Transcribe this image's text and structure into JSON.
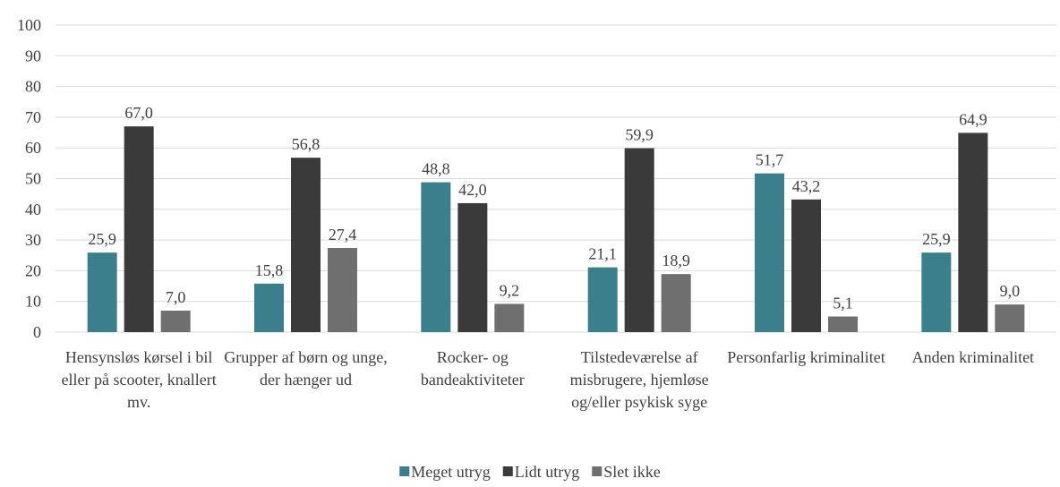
{
  "chart_data": {
    "type": "bar",
    "categories": [
      "Hensynsløs kørsel i bil eller på scooter, knallert mv.",
      "Grupper af børn og unge, der hænger ud",
      "Rocker- og bandeaktiviteter",
      "Tilstedeværelse af misbrugere, hjemløse og/eller psykisk syge",
      "Personfarlig kriminalitet",
      "Anden kriminalitet"
    ],
    "series": [
      {
        "name": "Meget utryg",
        "color": "#3b7f8c",
        "values": [
          25.9,
          15.8,
          48.8,
          21.1,
          51.7,
          25.9
        ],
        "value_labels": [
          "25,9",
          "15,8",
          "48,8",
          "21,1",
          "51,7",
          "25,9"
        ]
      },
      {
        "name": "Lidt utryg",
        "color": "#3a3a3a",
        "values": [
          67.0,
          56.8,
          42.0,
          59.9,
          43.2,
          64.9
        ],
        "value_labels": [
          "67,0",
          "56,8",
          "42,0",
          "59,9",
          "43,2",
          "64,9"
        ]
      },
      {
        "name": "Slet ikke",
        "color": "#6f6f6f",
        "values": [
          7.0,
          27.4,
          9.2,
          18.9,
          5.1,
          9.0
        ],
        "value_labels": [
          "7,0",
          "27,4",
          "9,2",
          "18,9",
          "5,1",
          "9,0"
        ]
      }
    ],
    "ylim": [
      0,
      100
    ],
    "yticks": [
      0,
      10,
      20,
      30,
      40,
      50,
      60,
      70,
      80,
      90,
      100
    ],
    "grid": true,
    "legend": "bottom"
  }
}
